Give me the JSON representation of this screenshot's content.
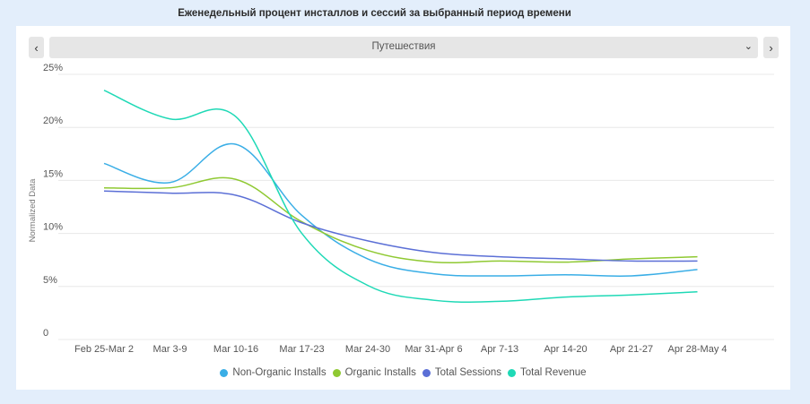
{
  "page_title": "Еженедельный процент инсталлов и сессий за выбранный период времени",
  "selector": {
    "value": "Путешествия",
    "prev_icon": "‹",
    "next_icon": "›",
    "caret_icon": "⌄"
  },
  "chart_data": {
    "type": "line",
    "title": "Еженедельный процент инсталлов и сессий за выбранный период времени",
    "ylabel": "Normalized Data",
    "xlabel": "",
    "ylim": [
      0,
      25
    ],
    "yticks": [
      0,
      5,
      10,
      15,
      20,
      25
    ],
    "ytick_labels": [
      "0",
      "5%",
      "10%",
      "15%",
      "20%",
      "25%"
    ],
    "categories": [
      "Feb 25-Mar 2",
      "Mar 3-9",
      "Mar 10-16",
      "Mar 17-23",
      "Mar 24-30",
      "Mar 31-Apr 6",
      "Apr 7-13",
      "Apr 14-20",
      "Apr 21-27",
      "Apr 28-May 4"
    ],
    "grid": true,
    "legend_position": "bottom",
    "series": [
      {
        "name": "Non-Organic Installs",
        "color": "#3aaee6",
        "values": [
          16.6,
          14.8,
          18.4,
          11.7,
          7.6,
          6.2,
          6.0,
          6.1,
          6.0,
          6.6
        ]
      },
      {
        "name": "Organic Installs",
        "color": "#8fc932",
        "values": [
          14.3,
          14.3,
          15.1,
          11.1,
          8.4,
          7.3,
          7.4,
          7.3,
          7.6,
          7.8
        ]
      },
      {
        "name": "Total Sessions",
        "color": "#5b6fd6",
        "values": [
          14.0,
          13.8,
          13.6,
          11.0,
          9.3,
          8.2,
          7.8,
          7.6,
          7.4,
          7.4
        ]
      },
      {
        "name": "Total Revenue",
        "color": "#1fd9b6",
        "values": [
          23.5,
          20.8,
          21.0,
          10.0,
          5.1,
          3.7,
          3.6,
          4.0,
          4.2,
          4.5
        ]
      }
    ]
  }
}
